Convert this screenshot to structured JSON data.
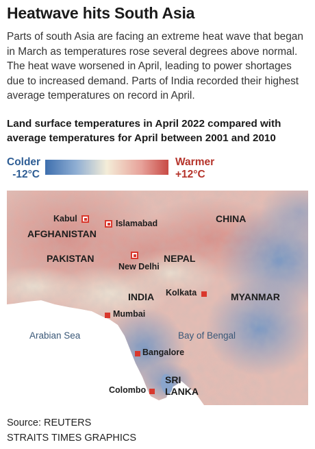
{
  "headline": "Heatwave hits South Asia",
  "intro": "Parts of south Asia are facing an extreme heat wave that began in March as temperatures rose several degrees above normal. The heat wave worsened in April, leading to power shortages due to increased demand. Parts of India recorded their highest average temperatures on record in April.",
  "subhead": "Land surface temperatures in April 2022 compared with average temperatures for April between 2001 and 2010",
  "legend": {
    "colder_label": "Colder",
    "colder_value": "-12°C",
    "warmer_label": "Warmer",
    "warmer_value": "+12°C",
    "colors": {
      "cold": "#3e6fae",
      "neutral": "#f4edd8",
      "warm": "#c84a45"
    }
  },
  "map": {
    "countries": [
      "AFGHANISTAN",
      "PAKISTAN",
      "CHINA",
      "NEPAL",
      "INDIA",
      "MYANMAR",
      "SRI",
      "LANKA"
    ],
    "seas": [
      "Arabian Sea",
      "Bay of Bengal"
    ],
    "capitals": [
      "Kabul",
      "Islamabad",
      "New Delhi"
    ],
    "cities": [
      "Kolkata",
      "Mumbai",
      "Bangalore",
      "Colombo"
    ],
    "marker_color": "#d9382d"
  },
  "source": {
    "line1": "Source: REUTERS",
    "line2": "STRAITS TIMES GRAPHICS"
  }
}
